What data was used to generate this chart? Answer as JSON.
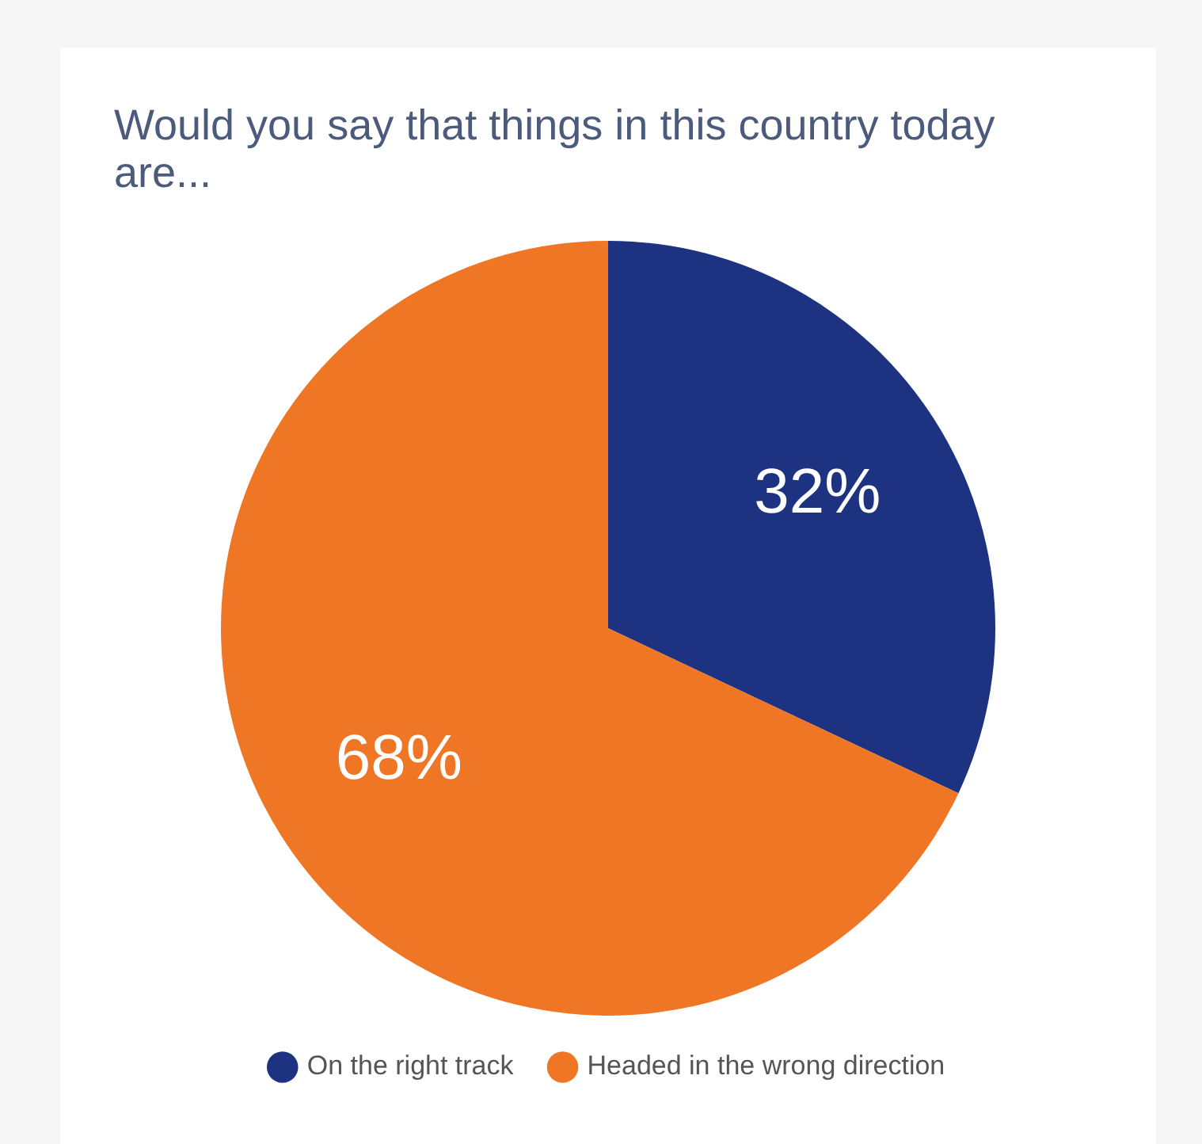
{
  "chart_data": {
    "type": "pie",
    "title": "Would you say that things in this country today are...",
    "categories": [
      "On the right track",
      "Headed in the wrong direction"
    ],
    "values": [
      32,
      68
    ],
    "colors": [
      "#1e3282",
      "#ef7624"
    ],
    "value_labels": [
      "32%",
      "68%"
    ],
    "legend": "bottom"
  }
}
